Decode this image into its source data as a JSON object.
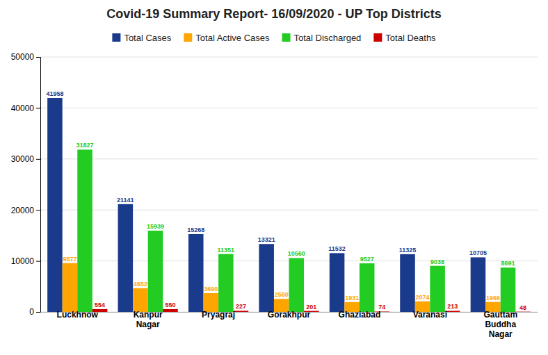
{
  "chart_data": {
    "type": "bar",
    "title": "Covid-19 Summary Report- 16/09/2020 - UP Top Districts",
    "categories": [
      "Luckhnow",
      "Kanpur\nNagar",
      "Pryagraj",
      "Gorakhpur",
      "Ghaziabad",
      "Varanasi",
      "Gauttam\nBuddha\nNagar"
    ],
    "series": [
      {
        "name": "Total Cases",
        "color": "#1a3a8c",
        "values": [
          41958,
          21141,
          15268,
          13321,
          11532,
          11325,
          10705
        ]
      },
      {
        "name": "Total Active Cases",
        "color": "#FFA500",
        "values": [
          9577,
          4652,
          3690,
          2560,
          1931,
          2074,
          1966
        ]
      },
      {
        "name": "Total Discharged",
        "color": "#22cc22",
        "values": [
          31827,
          15939,
          11351,
          10560,
          9527,
          9038,
          8691
        ]
      },
      {
        "name": "Total Deaths",
        "color": "#cc0000",
        "values": [
          554,
          550,
          227,
          201,
          74,
          213,
          48
        ]
      }
    ],
    "ylim": [
      0,
      50000
    ],
    "yticks": [
      0,
      10000,
      20000,
      30000,
      40000,
      50000
    ],
    "grid": true,
    "legend": "top",
    "data_labels": true
  }
}
